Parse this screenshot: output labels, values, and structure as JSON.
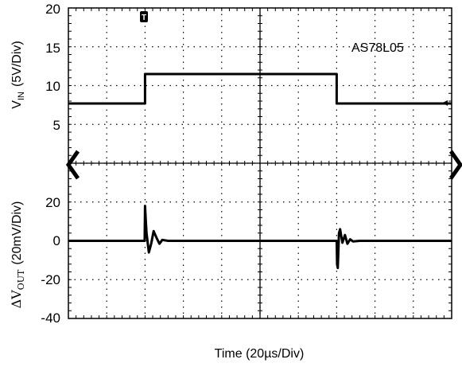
{
  "chart_data": [
    {
      "type": "line",
      "panel": "top",
      "annotation": "AS78L05",
      "ylabel": "V_IN (5V/Div)",
      "ylabel_main": "V",
      "ylabel_sub": "IN",
      "ylabel_rest": "(5V/Div)",
      "ylim": [
        0,
        20
      ],
      "yticks": [
        20,
        15,
        10,
        5
      ],
      "xlim": [
        0,
        200
      ],
      "series": [
        {
          "values_x": [
            0,
            40,
            40,
            140,
            140,
            200
          ],
          "values_y": [
            8,
            8,
            11.7,
            11.7,
            8,
            8
          ]
        }
      ]
    },
    {
      "type": "line",
      "panel": "bottom",
      "ylabel": "ΔV_OUT (20mV/Div)",
      "ylabel_main": "ΔV",
      "ylabel_sub": "OUT",
      "ylabel_rest": "(20mV/Div)",
      "ylim": [
        -40,
        40
      ],
      "yticks": [
        20,
        0,
        -20,
        -40
      ],
      "xlim": [
        0,
        200
      ],
      "series": [
        {
          "values_x": [
            0,
            39.8,
            40,
            40.4,
            40.8,
            42,
            43.2,
            44.5,
            46,
            47.5,
            49,
            52,
            140,
            140.2,
            140.6,
            141.2,
            141.8,
            143,
            144.3,
            145.6,
            147,
            148.5,
            152,
            200
          ],
          "values_y": [
            0,
            0,
            18,
            10,
            4,
            -6,
            -1.5,
            5,
            1.5,
            -1.5,
            0.5,
            0,
            0,
            -12,
            -14,
            4,
            6,
            -1,
            3,
            -1.5,
            0.8,
            -0.3,
            0,
            0
          ]
        }
      ]
    }
  ],
  "xlabel": "Time (20µs/Div)",
  "trigger_marker": "T",
  "level_marker": "◂"
}
